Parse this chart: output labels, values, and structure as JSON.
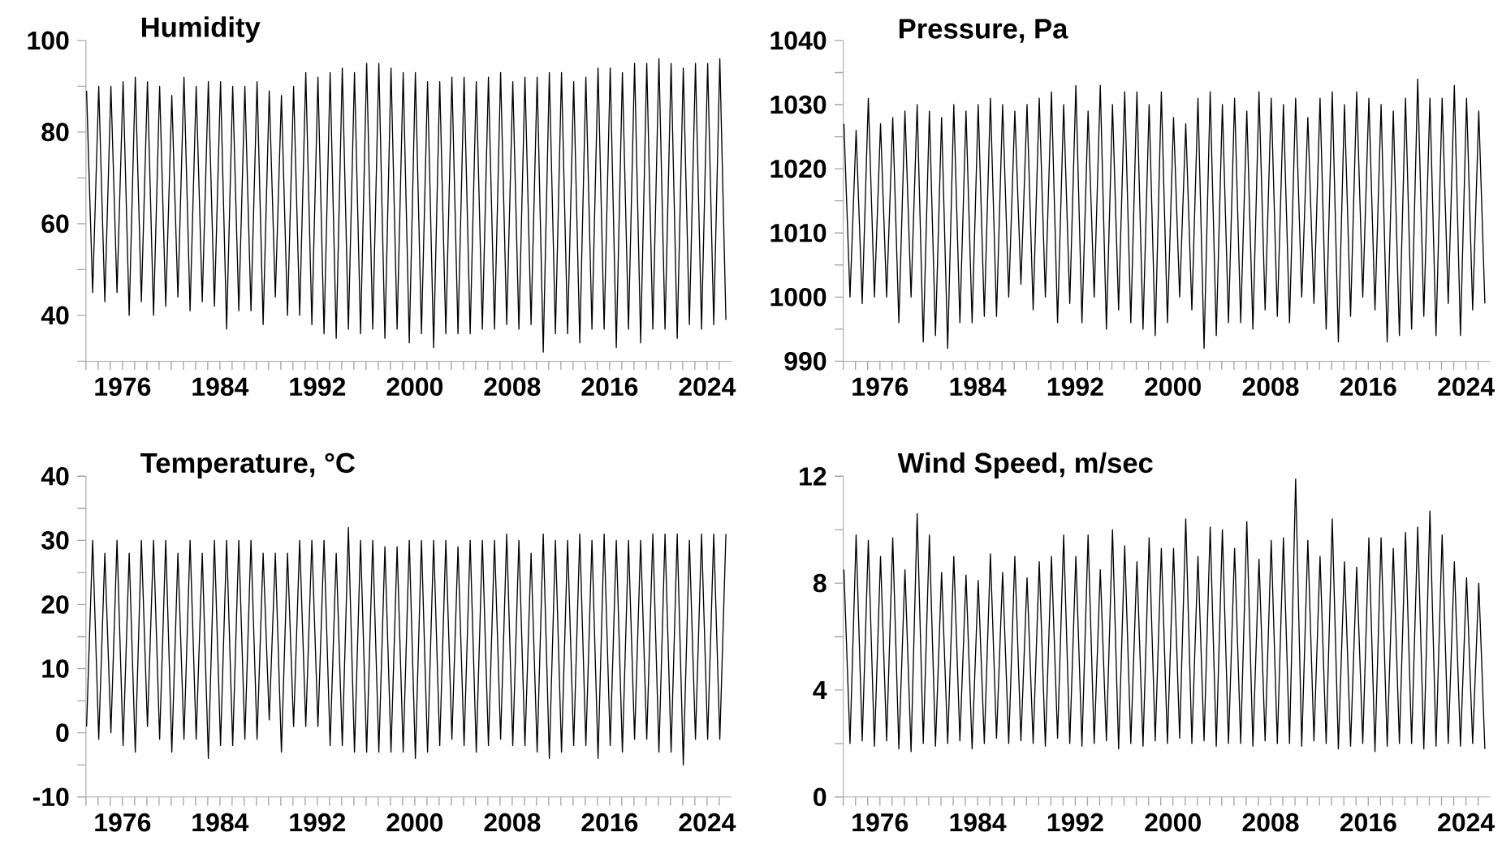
{
  "chart_data": [
    {
      "type": "line",
      "title": "Humidity",
      "color": "#000000",
      "x": [
        1973.05,
        1973.55,
        1974.05,
        1974.55,
        1975.05,
        1975.55,
        1976.05,
        1976.55,
        1977.05,
        1977.55,
        1978.05,
        1978.55,
        1979.05,
        1979.55,
        1980.05,
        1980.55,
        1981.05,
        1981.55,
        1982.05,
        1982.55,
        1983.05,
        1983.55,
        1984.05,
        1984.55,
        1985.05,
        1985.55,
        1986.05,
        1986.55,
        1987.05,
        1987.55,
        1988.05,
        1988.55,
        1989.05,
        1989.55,
        1990.05,
        1990.55,
        1991.05,
        1991.55,
        1992.05,
        1992.55,
        1993.05,
        1993.55,
        1994.05,
        1994.55,
        1995.05,
        1995.55,
        1996.05,
        1996.55,
        1997.05,
        1997.55,
        1998.05,
        1998.55,
        1999.05,
        1999.55,
        2000.05,
        2000.55,
        2001.05,
        2001.55,
        2002.05,
        2002.55,
        2003.05,
        2003.55,
        2004.05,
        2004.55,
        2005.05,
        2005.55,
        2006.05,
        2006.55,
        2007.05,
        2007.55,
        2008.05,
        2008.55,
        2009.05,
        2009.55,
        2010.05,
        2010.55,
        2011.05,
        2011.55,
        2012.05,
        2012.55,
        2013.05,
        2013.55,
        2014.05,
        2014.55,
        2015.05,
        2015.55,
        2016.05,
        2016.55,
        2017.05,
        2017.55,
        2018.05,
        2018.55,
        2019.05,
        2019.55,
        2020.05,
        2020.55,
        2021.05,
        2021.55,
        2022.05,
        2022.55,
        2023.05,
        2023.55,
        2024.05,
        2024.55,
        2025.05,
        2025.55
      ],
      "values": [
        89,
        45,
        90,
        43,
        90,
        45,
        91,
        40,
        92,
        43,
        91,
        40,
        90,
        42,
        88,
        44,
        92,
        41,
        90,
        43,
        91,
        42,
        91,
        37,
        90,
        41,
        90,
        41,
        91,
        38,
        89,
        44,
        88,
        40,
        90,
        40,
        93,
        38,
        92,
        36,
        93,
        35,
        94,
        37,
        93,
        36,
        95,
        37,
        95,
        35,
        94,
        37,
        93,
        34,
        93,
        36,
        91,
        33,
        91,
        36,
        92,
        36,
        92,
        36,
        91,
        37,
        92,
        37,
        93,
        38,
        91,
        37,
        92,
        38,
        92,
        32,
        93,
        36,
        93,
        36,
        91,
        34,
        92,
        37,
        94,
        37,
        94,
        33,
        93,
        37,
        95,
        34,
        95,
        37,
        96,
        37,
        95,
        35,
        94,
        38,
        95,
        37,
        95,
        38,
        96,
        39
      ],
      "xlim": [
        1973,
        2026
      ],
      "ylim": [
        30,
        100
      ],
      "yticks": [
        {
          "value": 30,
          "label": null
        },
        40,
        {
          "value": 50,
          "label": null
        },
        60,
        {
          "value": 70,
          "label": null
        },
        80,
        {
          "value": 90,
          "label": null
        },
        100
      ],
      "xticks": [
        {
          "value": 1973,
          "label": null
        },
        {
          "value": 1974,
          "label": null
        },
        {
          "value": 1975,
          "label": null
        },
        1976,
        {
          "value": 1977,
          "label": null
        },
        {
          "value": 1978,
          "label": null
        },
        {
          "value": 1979,
          "label": null
        },
        {
          "value": 1980,
          "label": null
        },
        {
          "value": 1981,
          "label": null
        },
        {
          "value": 1982,
          "label": null
        },
        {
          "value": 1983,
          "label": null
        },
        1984,
        {
          "value": 1985,
          "label": null
        },
        {
          "value": 1986,
          "label": null
        },
        {
          "value": 1987,
          "label": null
        },
        {
          "value": 1988,
          "label": null
        },
        {
          "value": 1989,
          "label": null
        },
        {
          "value": 1990,
          "label": null
        },
        {
          "value": 1991,
          "label": null
        },
        1992,
        {
          "value": 1993,
          "label": null
        },
        {
          "value": 1994,
          "label": null
        },
        {
          "value": 1995,
          "label": null
        },
        {
          "value": 1996,
          "label": null
        },
        {
          "value": 1997,
          "label": null
        },
        {
          "value": 1998,
          "label": null
        },
        {
          "value": 1999,
          "label": null
        },
        2000,
        {
          "value": 2001,
          "label": null
        },
        {
          "value": 2002,
          "label": null
        },
        {
          "value": 2003,
          "label": null
        },
        {
          "value": 2004,
          "label": null
        },
        {
          "value": 2005,
          "label": null
        },
        {
          "value": 2006,
          "label": null
        },
        {
          "value": 2007,
          "label": null
        },
        2008,
        {
          "value": 2009,
          "label": null
        },
        {
          "value": 2010,
          "label": null
        },
        {
          "value": 2011,
          "label": null
        },
        {
          "value": 2012,
          "label": null
        },
        {
          "value": 2013,
          "label": null
        },
        {
          "value": 2014,
          "label": null
        },
        {
          "value": 2015,
          "label": null
        },
        2016,
        {
          "value": 2017,
          "label": null
        },
        {
          "value": 2018,
          "label": null
        },
        {
          "value": 2019,
          "label": null
        },
        {
          "value": 2020,
          "label": null
        },
        {
          "value": 2021,
          "label": null
        },
        {
          "value": 2022,
          "label": null
        },
        {
          "value": 2023,
          "label": null
        },
        2024,
        {
          "value": 2025,
          "label": null
        }
      ]
    },
    {
      "type": "line",
      "title": "Pressure, Pa",
      "color": "#000000",
      "x": [
        1973.05,
        1973.55,
        1974.05,
        1974.55,
        1975.05,
        1975.55,
        1976.05,
        1976.55,
        1977.05,
        1977.55,
        1978.05,
        1978.55,
        1979.05,
        1979.55,
        1980.05,
        1980.55,
        1981.05,
        1981.55,
        1982.05,
        1982.55,
        1983.05,
        1983.55,
        1984.05,
        1984.55,
        1985.05,
        1985.55,
        1986.05,
        1986.55,
        1987.05,
        1987.55,
        1988.05,
        1988.55,
        1989.05,
        1989.55,
        1990.05,
        1990.55,
        1991.05,
        1991.55,
        1992.05,
        1992.55,
        1993.05,
        1993.55,
        1994.05,
        1994.55,
        1995.05,
        1995.55,
        1996.05,
        1996.55,
        1997.05,
        1997.55,
        1998.05,
        1998.55,
        1999.05,
        1999.55,
        2000.05,
        2000.55,
        2001.05,
        2001.55,
        2002.05,
        2002.55,
        2003.05,
        2003.55,
        2004.05,
        2004.55,
        2005.05,
        2005.55,
        2006.05,
        2006.55,
        2007.05,
        2007.55,
        2008.05,
        2008.55,
        2009.05,
        2009.55,
        2010.05,
        2010.55,
        2011.05,
        2011.55,
        2012.05,
        2012.55,
        2013.05,
        2013.55,
        2014.05,
        2014.55,
        2015.05,
        2015.55,
        2016.05,
        2016.55,
        2017.05,
        2017.55,
        2018.05,
        2018.55,
        2019.05,
        2019.55,
        2020.05,
        2020.55,
        2021.05,
        2021.55,
        2022.05,
        2022.55,
        2023.05,
        2023.55,
        2024.05,
        2024.55,
        2025.05,
        2025.55
      ],
      "values": [
        1027,
        1000,
        1026,
        999,
        1031,
        1000,
        1027,
        1000,
        1028,
        996,
        1029,
        1000,
        1030,
        993,
        1029,
        994,
        1028,
        992,
        1030,
        996,
        1029,
        996,
        1030,
        997,
        1031,
        997,
        1030,
        1000,
        1029,
        1002,
        1030,
        998,
        1031,
        1000,
        1032,
        996,
        1030,
        999,
        1033,
        996,
        1029,
        1000,
        1033,
        995,
        1030,
        998,
        1032,
        996,
        1032,
        995,
        1030,
        994,
        1032,
        996,
        1028,
        1000,
        1027,
        998,
        1031,
        992,
        1032,
        994,
        1030,
        996,
        1031,
        996,
        1029,
        995,
        1032,
        998,
        1031,
        997,
        1030,
        996,
        1031,
        1000,
        1028,
        999,
        1031,
        995,
        1032,
        993,
        1030,
        997,
        1032,
        1000,
        1031,
        998,
        1030,
        993,
        1029,
        994,
        1031,
        995,
        1034,
        997,
        1031,
        994,
        1031,
        999,
        1033,
        994,
        1031,
        998,
        1029,
        999
      ],
      "xlim": [
        1973,
        2026
      ],
      "ylim": [
        990,
        1040
      ],
      "yticks": [
        990,
        {
          "value": 995,
          "label": null
        },
        1000,
        {
          "value": 1005,
          "label": null
        },
        1010,
        {
          "value": 1015,
          "label": null
        },
        1020,
        {
          "value": 1025,
          "label": null
        },
        1030,
        {
          "value": 1035,
          "label": null
        },
        1040
      ],
      "xticks": [
        {
          "value": 1973,
          "label": null
        },
        {
          "value": 1974,
          "label": null
        },
        {
          "value": 1975,
          "label": null
        },
        1976,
        {
          "value": 1977,
          "label": null
        },
        {
          "value": 1978,
          "label": null
        },
        {
          "value": 1979,
          "label": null
        },
        {
          "value": 1980,
          "label": null
        },
        {
          "value": 1981,
          "label": null
        },
        {
          "value": 1982,
          "label": null
        },
        {
          "value": 1983,
          "label": null
        },
        1984,
        {
          "value": 1985,
          "label": null
        },
        {
          "value": 1986,
          "label": null
        },
        {
          "value": 1987,
          "label": null
        },
        {
          "value": 1988,
          "label": null
        },
        {
          "value": 1989,
          "label": null
        },
        {
          "value": 1990,
          "label": null
        },
        {
          "value": 1991,
          "label": null
        },
        1992,
        {
          "value": 1993,
          "label": null
        },
        {
          "value": 1994,
          "label": null
        },
        {
          "value": 1995,
          "label": null
        },
        {
          "value": 1996,
          "label": null
        },
        {
          "value": 1997,
          "label": null
        },
        {
          "value": 1998,
          "label": null
        },
        {
          "value": 1999,
          "label": null
        },
        2000,
        {
          "value": 2001,
          "label": null
        },
        {
          "value": 2002,
          "label": null
        },
        {
          "value": 2003,
          "label": null
        },
        {
          "value": 2004,
          "label": null
        },
        {
          "value": 2005,
          "label": null
        },
        {
          "value": 2006,
          "label": null
        },
        {
          "value": 2007,
          "label": null
        },
        2008,
        {
          "value": 2009,
          "label": null
        },
        {
          "value": 2010,
          "label": null
        },
        {
          "value": 2011,
          "label": null
        },
        {
          "value": 2012,
          "label": null
        },
        {
          "value": 2013,
          "label": null
        },
        {
          "value": 2014,
          "label": null
        },
        {
          "value": 2015,
          "label": null
        },
        2016,
        {
          "value": 2017,
          "label": null
        },
        {
          "value": 2018,
          "label": null
        },
        {
          "value": 2019,
          "label": null
        },
        {
          "value": 2020,
          "label": null
        },
        {
          "value": 2021,
          "label": null
        },
        {
          "value": 2022,
          "label": null
        },
        {
          "value": 2023,
          "label": null
        },
        2024,
        {
          "value": 2025,
          "label": null
        }
      ]
    },
    {
      "type": "line",
      "title": "Temperature, °C",
      "color": "#000000",
      "x": [
        1973.05,
        1973.55,
        1974.05,
        1974.55,
        1975.05,
        1975.55,
        1976.05,
        1976.55,
        1977.05,
        1977.55,
        1978.05,
        1978.55,
        1979.05,
        1979.55,
        1980.05,
        1980.55,
        1981.05,
        1981.55,
        1982.05,
        1982.55,
        1983.05,
        1983.55,
        1984.05,
        1984.55,
        1985.05,
        1985.55,
        1986.05,
        1986.55,
        1987.05,
        1987.55,
        1988.05,
        1988.55,
        1989.05,
        1989.55,
        1990.05,
        1990.55,
        1991.05,
        1991.55,
        1992.05,
        1992.55,
        1993.05,
        1993.55,
        1994.05,
        1994.55,
        1995.05,
        1995.55,
        1996.05,
        1996.55,
        1997.05,
        1997.55,
        1998.05,
        1998.55,
        1999.05,
        1999.55,
        2000.05,
        2000.55,
        2001.05,
        2001.55,
        2002.05,
        2002.55,
        2003.05,
        2003.55,
        2004.05,
        2004.55,
        2005.05,
        2005.55,
        2006.05,
        2006.55,
        2007.05,
        2007.55,
        2008.05,
        2008.55,
        2009.05,
        2009.55,
        2010.05,
        2010.55,
        2011.05,
        2011.55,
        2012.05,
        2012.55,
        2013.05,
        2013.55,
        2014.05,
        2014.55,
        2015.05,
        2015.55,
        2016.05,
        2016.55,
        2017.05,
        2017.55,
        2018.05,
        2018.55,
        2019.05,
        2019.55,
        2020.05,
        2020.55,
        2021.05,
        2021.55,
        2022.05,
        2022.55,
        2023.05,
        2023.55,
        2024.05,
        2024.55,
        2025.05,
        2025.55
      ],
      "values": [
        1,
        30,
        -1,
        28,
        0,
        30,
        -2,
        28,
        -3,
        30,
        1,
        30,
        -1,
        30,
        -3,
        28,
        -1,
        30,
        -1,
        28,
        -4,
        30,
        -2,
        30,
        -2,
        30,
        -1,
        30,
        -1,
        28,
        2,
        28,
        -3,
        28,
        1,
        30,
        1,
        30,
        1,
        30,
        -2,
        28,
        -2,
        32,
        -3,
        30,
        -3,
        30,
        -3,
        29,
        -3,
        29,
        -3,
        30,
        -4,
        30,
        -3,
        30,
        -2,
        30,
        -1,
        29,
        -2,
        30,
        -3,
        30,
        -2,
        30,
        -1,
        31,
        -2,
        30,
        -2,
        28,
        -3,
        31,
        -4,
        30,
        -3,
        30,
        -2,
        31,
        -2,
        30,
        -4,
        31,
        -2,
        30,
        -3,
        30,
        -1,
        30,
        -1,
        31,
        -3,
        31,
        -3,
        31,
        -5,
        30,
        -1,
        31,
        -1,
        31,
        -1,
        31
      ],
      "xlim": [
        1973,
        2026
      ],
      "ylim": [
        -10,
        40
      ],
      "yticks": [
        -10,
        {
          "value": -5,
          "label": null
        },
        0,
        {
          "value": 5,
          "label": null
        },
        10,
        {
          "value": 15,
          "label": null
        },
        20,
        {
          "value": 25,
          "label": null
        },
        30,
        {
          "value": 35,
          "label": null
        },
        40
      ],
      "xticks": [
        {
          "value": 1973,
          "label": null
        },
        {
          "value": 1974,
          "label": null
        },
        {
          "value": 1975,
          "label": null
        },
        1976,
        {
          "value": 1977,
          "label": null
        },
        {
          "value": 1978,
          "label": null
        },
        {
          "value": 1979,
          "label": null
        },
        {
          "value": 1980,
          "label": null
        },
        {
          "value": 1981,
          "label": null
        },
        {
          "value": 1982,
          "label": null
        },
        {
          "value": 1983,
          "label": null
        },
        1984,
        {
          "value": 1985,
          "label": null
        },
        {
          "value": 1986,
          "label": null
        },
        {
          "value": 1987,
          "label": null
        },
        {
          "value": 1988,
          "label": null
        },
        {
          "value": 1989,
          "label": null
        },
        {
          "value": 1990,
          "label": null
        },
        {
          "value": 1991,
          "label": null
        },
        1992,
        {
          "value": 1993,
          "label": null
        },
        {
          "value": 1994,
          "label": null
        },
        {
          "value": 1995,
          "label": null
        },
        {
          "value": 1996,
          "label": null
        },
        {
          "value": 1997,
          "label": null
        },
        {
          "value": 1998,
          "label": null
        },
        {
          "value": 1999,
          "label": null
        },
        2000,
        {
          "value": 2001,
          "label": null
        },
        {
          "value": 2002,
          "label": null
        },
        {
          "value": 2003,
          "label": null
        },
        {
          "value": 2004,
          "label": null
        },
        {
          "value": 2005,
          "label": null
        },
        {
          "value": 2006,
          "label": null
        },
        {
          "value": 2007,
          "label": null
        },
        2008,
        {
          "value": 2009,
          "label": null
        },
        {
          "value": 2010,
          "label": null
        },
        {
          "value": 2011,
          "label": null
        },
        {
          "value": 2012,
          "label": null
        },
        {
          "value": 2013,
          "label": null
        },
        {
          "value": 2014,
          "label": null
        },
        {
          "value": 2015,
          "label": null
        },
        2016,
        {
          "value": 2017,
          "label": null
        },
        {
          "value": 2018,
          "label": null
        },
        {
          "value": 2019,
          "label": null
        },
        {
          "value": 2020,
          "label": null
        },
        {
          "value": 2021,
          "label": null
        },
        {
          "value": 2022,
          "label": null
        },
        {
          "value": 2023,
          "label": null
        },
        2024,
        {
          "value": 2025,
          "label": null
        }
      ]
    },
    {
      "type": "line",
      "title": "Wind Speed, m/sec",
      "color": "#000000",
      "x": [
        1973.05,
        1973.55,
        1974.05,
        1974.55,
        1975.05,
        1975.55,
        1976.05,
        1976.55,
        1977.05,
        1977.55,
        1978.05,
        1978.55,
        1979.05,
        1979.55,
        1980.05,
        1980.55,
        1981.05,
        1981.55,
        1982.05,
        1982.55,
        1983.05,
        1983.55,
        1984.05,
        1984.55,
        1985.05,
        1985.55,
        1986.05,
        1986.55,
        1987.05,
        1987.55,
        1988.05,
        1988.55,
        1989.05,
        1989.55,
        1990.05,
        1990.55,
        1991.05,
        1991.55,
        1992.05,
        1992.55,
        1993.05,
        1993.55,
        1994.05,
        1994.55,
        1995.05,
        1995.55,
        1996.05,
        1996.55,
        1997.05,
        1997.55,
        1998.05,
        1998.55,
        1999.05,
        1999.55,
        2000.05,
        2000.55,
        2001.05,
        2001.55,
        2002.05,
        2002.55,
        2003.05,
        2003.55,
        2004.05,
        2004.55,
        2005.05,
        2005.55,
        2006.05,
        2006.55,
        2007.05,
        2007.55,
        2008.05,
        2008.55,
        2009.05,
        2009.55,
        2010.05,
        2010.55,
        2011.05,
        2011.55,
        2012.05,
        2012.55,
        2013.05,
        2013.55,
        2014.05,
        2014.55,
        2015.05,
        2015.55,
        2016.05,
        2016.55,
        2017.05,
        2017.55,
        2018.05,
        2018.55,
        2019.05,
        2019.55,
        2020.05,
        2020.55,
        2021.05,
        2021.55,
        2022.05,
        2022.55,
        2023.05,
        2023.55,
        2024.05,
        2024.55,
        2025.05,
        2025.55
      ],
      "values": [
        8.5,
        2.0,
        9.8,
        2.1,
        9.6,
        1.9,
        9.0,
        2.1,
        9.7,
        1.8,
        8.5,
        1.7,
        10.6,
        2.0,
        9.8,
        1.9,
        8.4,
        2.0,
        9.0,
        2.1,
        8.3,
        1.8,
        8.1,
        2.0,
        9.1,
        2.2,
        8.4,
        2.0,
        9.0,
        2.1,
        8.2,
        2.0,
        8.8,
        1.9,
        9.0,
        2.2,
        9.8,
        2.0,
        9.0,
        1.9,
        9.8,
        2.0,
        8.5,
        2.1,
        10.0,
        1.8,
        9.4,
        2.0,
        8.8,
        1.9,
        9.7,
        2.1,
        9.3,
        2.0,
        9.3,
        2.2,
        10.4,
        2.0,
        9.0,
        2.1,
        10.1,
        1.9,
        10.0,
        2.0,
        9.3,
        2.0,
        10.3,
        1.9,
        8.9,
        2.1,
        9.6,
        2.0,
        9.7,
        2.0,
        11.9,
        1.9,
        9.6,
        2.1,
        9.0,
        2.0,
        10.4,
        1.8,
        8.8,
        1.9,
        8.6,
        2.0,
        9.7,
        1.7,
        9.7,
        1.9,
        9.3,
        2.0,
        9.9,
        2.0,
        10.1,
        1.8,
        10.7,
        1.9,
        9.8,
        2.0,
        8.8,
        1.9,
        8.2,
        2.0,
        8.0,
        1.8
      ],
      "xlim": [
        1973,
        2026
      ],
      "ylim": [
        0,
        12
      ],
      "yticks": [
        0,
        {
          "value": 2,
          "label": null
        },
        4,
        {
          "value": 6,
          "label": null
        },
        8,
        {
          "value": 10,
          "label": null
        },
        12
      ],
      "xticks": [
        {
          "value": 1973,
          "label": null
        },
        {
          "value": 1974,
          "label": null
        },
        {
          "value": 1975,
          "label": null
        },
        1976,
        {
          "value": 1977,
          "label": null
        },
        {
          "value": 1978,
          "label": null
        },
        {
          "value": 1979,
          "label": null
        },
        {
          "value": 1980,
          "label": null
        },
        {
          "value": 1981,
          "label": null
        },
        {
          "value": 1982,
          "label": null
        },
        {
          "value": 1983,
          "label": null
        },
        1984,
        {
          "value": 1985,
          "label": null
        },
        {
          "value": 1986,
          "label": null
        },
        {
          "value": 1987,
          "label": null
        },
        {
          "value": 1988,
          "label": null
        },
        {
          "value": 1989,
          "label": null
        },
        {
          "value": 1990,
          "label": null
        },
        {
          "value": 1991,
          "label": null
        },
        1992,
        {
          "value": 1993,
          "label": null
        },
        {
          "value": 1994,
          "label": null
        },
        {
          "value": 1995,
          "label": null
        },
        {
          "value": 1996,
          "label": null
        },
        {
          "value": 1997,
          "label": null
        },
        {
          "value": 1998,
          "label": null
        },
        {
          "value": 1999,
          "label": null
        },
        2000,
        {
          "value": 2001,
          "label": null
        },
        {
          "value": 2002,
          "label": null
        },
        {
          "value": 2003,
          "label": null
        },
        {
          "value": 2004,
          "label": null
        },
        {
          "value": 2005,
          "label": null
        },
        {
          "value": 2006,
          "label": null
        },
        {
          "value": 2007,
          "label": null
        },
        2008,
        {
          "value": 2009,
          "label": null
        },
        {
          "value": 2010,
          "label": null
        },
        {
          "value": 2011,
          "label": null
        },
        {
          "value": 2012,
          "label": null
        },
        {
          "value": 2013,
          "label": null
        },
        {
          "value": 2014,
          "label": null
        },
        {
          "value": 2015,
          "label": null
        },
        2016,
        {
          "value": 2017,
          "label": null
        },
        {
          "value": 2018,
          "label": null
        },
        {
          "value": 2019,
          "label": null
        },
        {
          "value": 2020,
          "label": null
        },
        {
          "value": 2021,
          "label": null
        },
        {
          "value": 2022,
          "label": null
        },
        {
          "value": 2023,
          "label": null
        },
        2024,
        {
          "value": 2025,
          "label": null
        }
      ]
    }
  ]
}
